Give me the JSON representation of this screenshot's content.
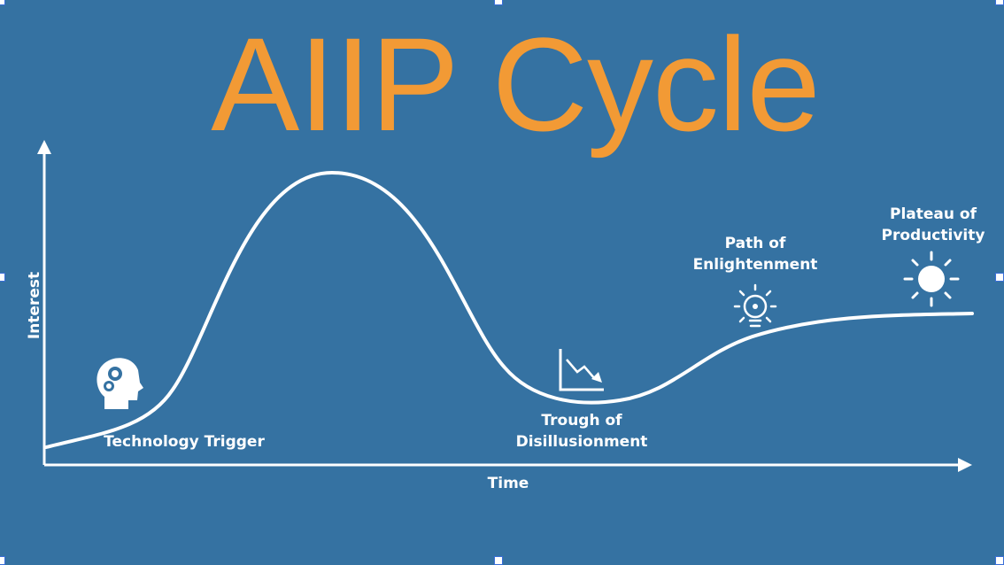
{
  "title": "AIIP Cycle",
  "axes": {
    "x_label": "Time",
    "y_label": "Interest"
  },
  "phases": [
    {
      "label_lines": [
        "Technology Trigger"
      ],
      "icon": "head-gears-icon"
    },
    {
      "label_lines": [
        "Trough of",
        "Disillusionment"
      ],
      "icon": "declining-chart-icon"
    },
    {
      "label_lines": [
        "Path of",
        "Enlightenment"
      ],
      "icon": "lightbulb-icon"
    },
    {
      "label_lines": [
        "Plateau of",
        "Productivity"
      ],
      "icon": "sun-icon"
    }
  ],
  "colors": {
    "background": "#3572a2",
    "title": "#f29a35",
    "foreground": "#ffffff"
  }
}
